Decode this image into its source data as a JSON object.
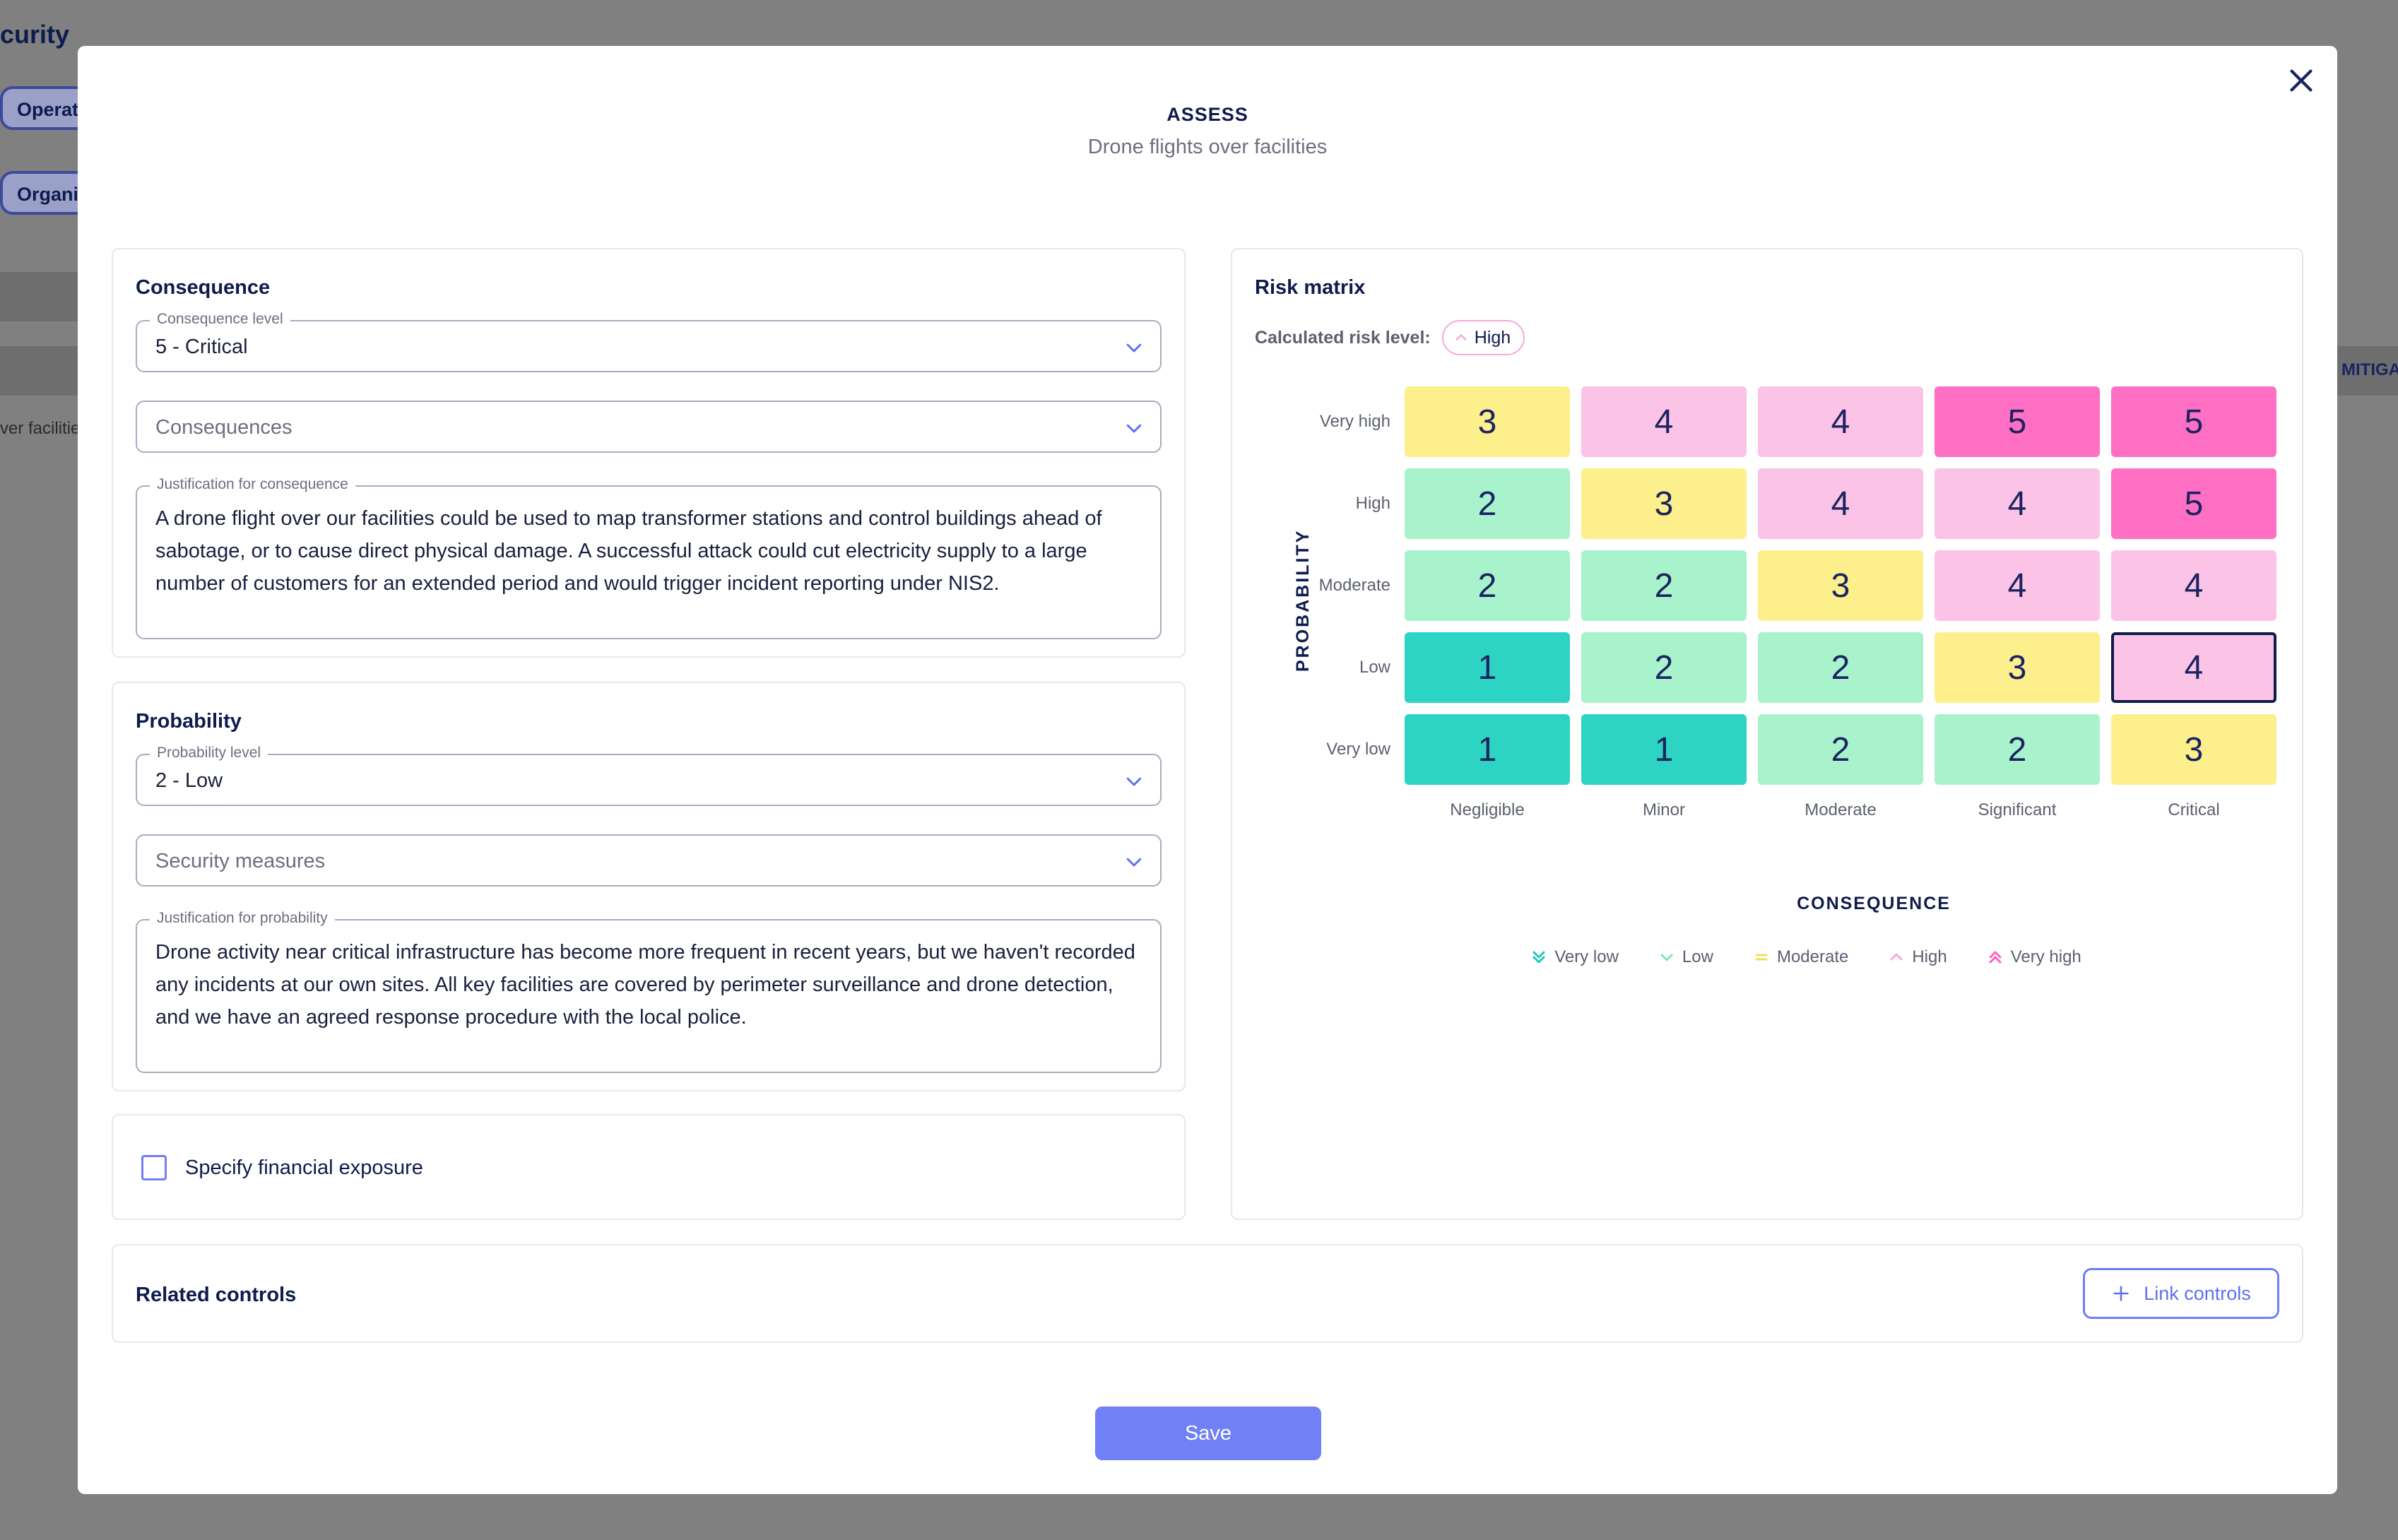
{
  "background": {
    "title": "curity",
    "chip1": "Operat",
    "chip2": "Organisa",
    "row_text": "ver facilitie",
    "right_text": "MITIGA"
  },
  "modal": {
    "title": "ASSESS",
    "subtitle": "Drone flights over facilities",
    "close_icon": "close-icon"
  },
  "consequence": {
    "title": "Consequence",
    "level_label": "Consequence level",
    "level_value": "5 - Critical",
    "consequences_placeholder": "Consequences",
    "justification_label": "Justification for consequence",
    "justification_text": "A drone flight over our facilities could be used to map transformer stations and control buildings ahead of sabotage, or to cause direct physical damage. A successful attack could cut electricity supply to a large number of customers for an extended period and would trigger incident reporting under NIS2."
  },
  "probability": {
    "title": "Probability",
    "level_label": "Probability level",
    "level_value": "2 - Low",
    "measures_placeholder": "Security measures",
    "justification_label": "Justification for probability",
    "justification_text": "Drone activity near critical infrastructure has become more frequent in recent years, but we haven't recorded any incidents at our own sites. All key facilities are covered by perimeter surveillance and drone detection, and we have an agreed response procedure with the local police."
  },
  "financial": {
    "checkbox_label": "Specify financial exposure",
    "checked": false
  },
  "risk_matrix": {
    "title": "Risk matrix",
    "calculated_label": "Calculated risk level:",
    "calculated_value": "High",
    "y_axis": "PROBABILITY",
    "x_axis": "CONSEQUENCE",
    "rows": [
      "Very high",
      "High",
      "Moderate",
      "Low",
      "Very low"
    ],
    "columns": [
      "Negligible",
      "Minor",
      "Moderate",
      "Significant",
      "Critical"
    ],
    "values": [
      [
        3,
        4,
        4,
        5,
        5
      ],
      [
        2,
        3,
        4,
        4,
        5
      ],
      [
        2,
        2,
        3,
        4,
        4
      ],
      [
        1,
        2,
        2,
        3,
        4
      ],
      [
        1,
        1,
        2,
        2,
        3
      ]
    ],
    "selected": {
      "row": 3,
      "col": 4
    },
    "colors": {
      "1": "#2dd4c4",
      "2": "#a8f2cc",
      "3": "#fcef8c",
      "4": "#fbc3e6",
      "5": "#ff6fc3"
    },
    "legend": [
      {
        "label": "Very low",
        "icon": "double-chevron-down-icon",
        "color": "#1fc9b7"
      },
      {
        "label": "Low",
        "icon": "chevron-down-icon",
        "color": "#7ee6b0"
      },
      {
        "label": "Moderate",
        "icon": "equals-icon",
        "color": "#f2df55"
      },
      {
        "label": "High",
        "icon": "chevron-up-icon",
        "color": "#f5a9d6"
      },
      {
        "label": "Very high",
        "icon": "double-chevron-up-icon",
        "color": "#ff5fbf"
      }
    ]
  },
  "related_controls": {
    "title": "Related controls",
    "link_button": "Link controls"
  },
  "footer": {
    "save_label": "Save"
  }
}
